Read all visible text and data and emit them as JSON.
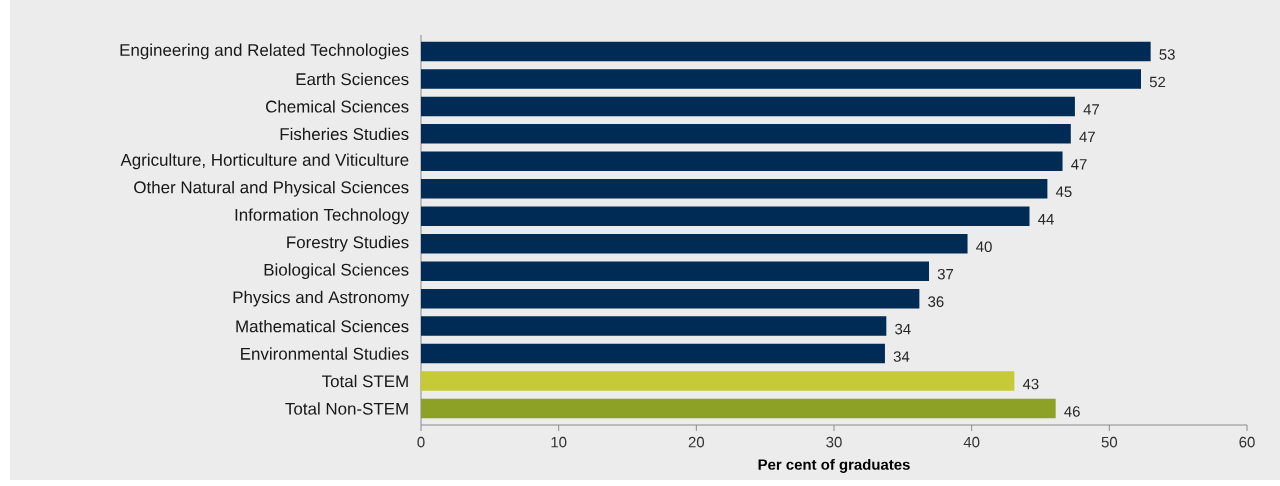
{
  "chart_data": {
    "type": "bar",
    "orientation": "horizontal",
    "categories": [
      "Engineering and Related Technologies",
      "Earth Sciences",
      "Chemical Sciences",
      "Fisheries Studies",
      "Agriculture, Horticulture and Viticulture",
      "Other Natural and Physical Sciences",
      "Information Technology",
      "Forestry Studies",
      "Biological Sciences",
      "Physics and Astronomy",
      "Mathematical Sciences",
      "Environmental Studies",
      "Total STEM",
      "Total Non-STEM"
    ],
    "values": [
      53.0,
      52.3,
      47.5,
      47.2,
      46.6,
      45.5,
      44.2,
      39.7,
      36.9,
      36.2,
      33.8,
      33.7,
      43.1,
      46.1
    ],
    "value_labels": [
      "53",
      "52",
      "47",
      "47",
      "47",
      "45",
      "44",
      "40",
      "37",
      "36",
      "34",
      "34",
      "43",
      "46"
    ],
    "colors": [
      "#002b55",
      "#002b55",
      "#002b55",
      "#002b55",
      "#002b55",
      "#002b55",
      "#002b55",
      "#002b55",
      "#002b55",
      "#002b55",
      "#002b55",
      "#002b55",
      "#c5ca36",
      "#8ca126"
    ],
    "xlim": [
      0,
      60
    ],
    "xticks": [
      0,
      10,
      20,
      30,
      40,
      50,
      60
    ],
    "xlabel": "Per cent of graduates"
  }
}
